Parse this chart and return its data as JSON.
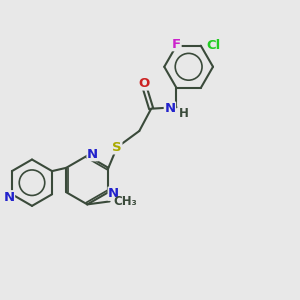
{
  "bg_color": "#e8e8e8",
  "bond_color": "#3a4a3a",
  "bond_width": 1.5,
  "atom_colors": {
    "N": "#2222cc",
    "O": "#cc2222",
    "S": "#aaaa00",
    "F": "#cc22cc",
    "Cl": "#22cc22",
    "H": "#3a4a3a",
    "C": "#3a4a3a"
  },
  "font_size": 8.5,
  "fig_size": [
    3.0,
    3.0
  ],
  "dpi": 100
}
